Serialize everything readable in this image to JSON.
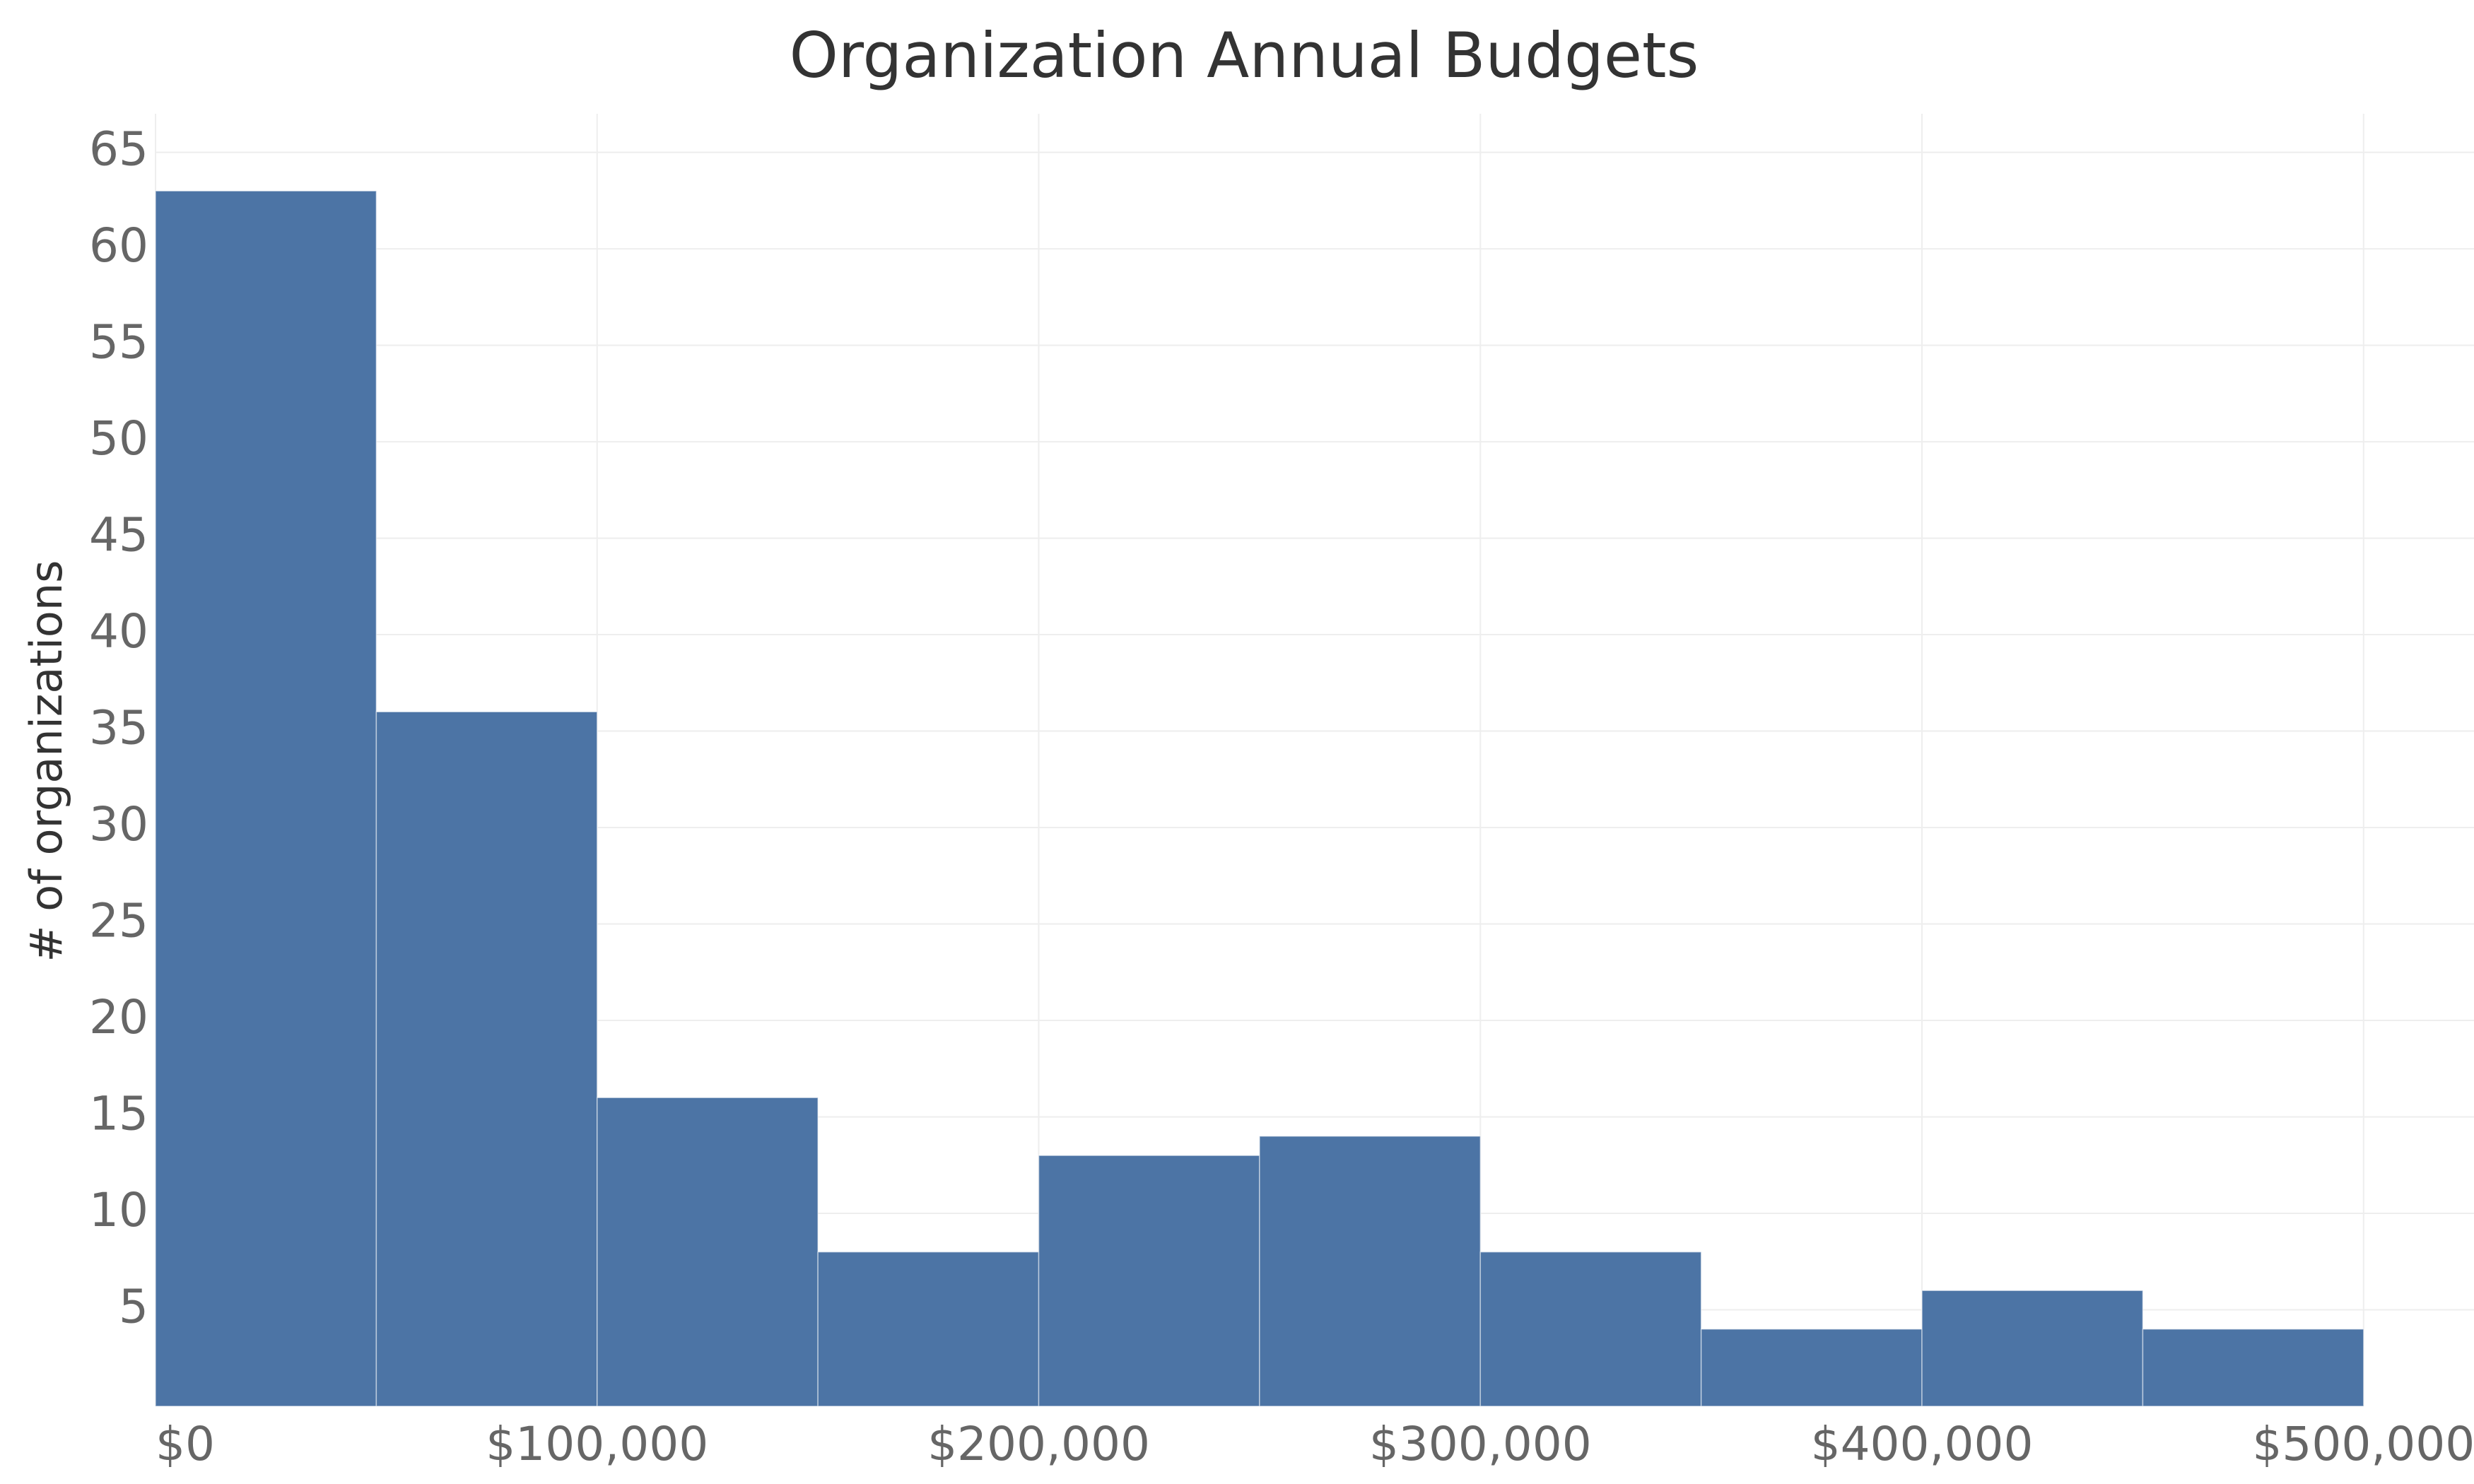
{
  "chart_data": {
    "type": "histogram",
    "title": "Organization Annual Budgets",
    "y_label": "# of organizations",
    "bins": [
      0,
      50000,
      100000,
      150000,
      200000,
      250000,
      300000,
      350000,
      400000,
      450000,
      500000
    ],
    "values": [
      63,
      36,
      16,
      8,
      13,
      14,
      8,
      4,
      6,
      4
    ],
    "color": "#4c74a5",
    "xlim": [
      0,
      525000
    ],
    "xticks": [
      {
        "value": 0,
        "label": "$0"
      },
      {
        "value": 100000,
        "label": "$100,000"
      },
      {
        "value": 200000,
        "label": "$200,000"
      },
      {
        "value": 300000,
        "label": "$300,000"
      },
      {
        "value": 400000,
        "label": "$400,000"
      },
      {
        "value": 500000,
        "label": "$500,000"
      }
    ],
    "ylim": [
      0,
      67
    ],
    "yticks": [
      5,
      10,
      15,
      20,
      25,
      30,
      35,
      40,
      45,
      50,
      55,
      60,
      65
    ],
    "grid": true
  }
}
